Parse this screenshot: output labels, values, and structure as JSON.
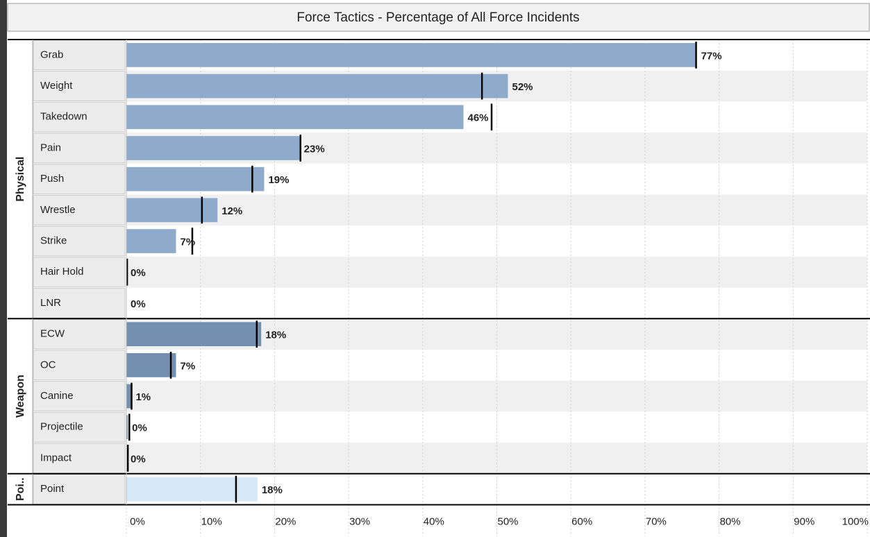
{
  "chart_data": {
    "type": "bar",
    "title": "Force Tactics - Percentage of All Force Incidents",
    "xlim": [
      0,
      100
    ],
    "xticks": [
      {
        "value": 0,
        "label": "0%"
      },
      {
        "value": 10,
        "label": "10%"
      },
      {
        "value": 20,
        "label": "20%"
      },
      {
        "value": 30,
        "label": "30%"
      },
      {
        "value": 40,
        "label": "40%"
      },
      {
        "value": 50,
        "label": "50%"
      },
      {
        "value": 60,
        "label": "60%"
      },
      {
        "value": 70,
        "label": "70%"
      },
      {
        "value": 80,
        "label": "80%"
      },
      {
        "value": 90,
        "label": "90%"
      },
      {
        "value": 100,
        "label": "100%"
      }
    ],
    "grid": true,
    "groups": [
      {
        "name": "Physical",
        "color": "#8eabcc",
        "categories": [
          "Grab",
          "Weight",
          "Takedown",
          "Pain",
          "Push",
          "Wrestle",
          "Strike",
          "Hair Hold",
          "LNR"
        ],
        "values": [
          77,
          51.5,
          45.5,
          23.4,
          18.6,
          12.3,
          6.7,
          0,
          0
        ],
        "value_labels": [
          "77%",
          "52%",
          "46%",
          "23%",
          "19%",
          "12%",
          "7%",
          "0%",
          "0%"
        ],
        "reference": [
          76.9,
          48,
          49.3,
          23.5,
          17,
          10.2,
          8.9,
          0.1,
          null
        ]
      },
      {
        "name": "Weapon",
        "color": "#7490b0",
        "categories": [
          "ECW",
          "OC",
          "Canine",
          "Projectile",
          "Impact"
        ],
        "values": [
          18.2,
          6.7,
          0.7,
          0.2,
          0
        ],
        "value_labels": [
          "18%",
          "7%",
          "1%",
          "0%",
          "0%"
        ],
        "reference": [
          17.6,
          6,
          0.7,
          0.4,
          0.2
        ]
      },
      {
        "name": "Poi..",
        "color": "#d6e8f5",
        "categories": [
          "Point"
        ],
        "values": [
          17.7
        ],
        "value_labels": [
          "18%"
        ],
        "reference": [
          14.8
        ]
      }
    ]
  }
}
